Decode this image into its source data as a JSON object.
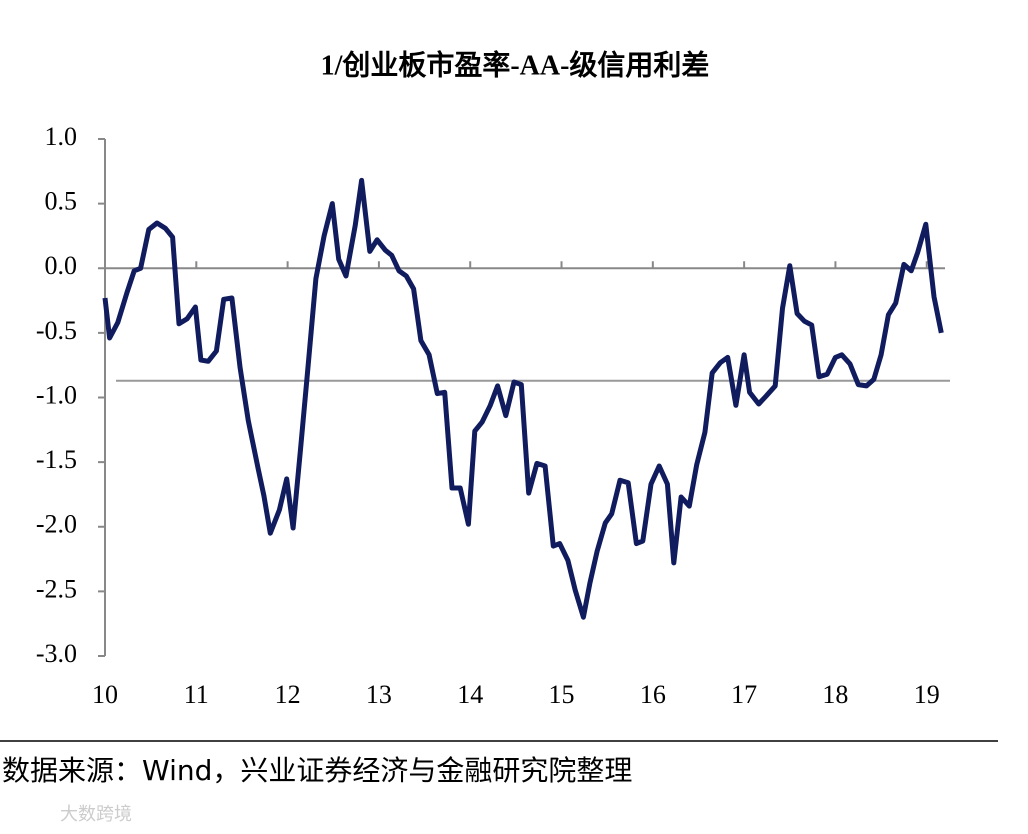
{
  "chart_data": {
    "type": "line",
    "title": "1/创业板市盈率-AA-级信用利差",
    "source": "数据来源：Wind，兴业证券经济与金融研究院整理",
    "watermark": "大数跨境",
    "series": [
      {
        "color": "#101c5e",
        "x": [
          10.0,
          10.05,
          10.14,
          10.24,
          10.32,
          10.39,
          10.48,
          10.57,
          10.66,
          10.74,
          10.81,
          10.9,
          10.99,
          11.05,
          11.13,
          11.22,
          11.3,
          11.39,
          11.48,
          11.57,
          11.68,
          11.74,
          11.81,
          11.91,
          11.99,
          12.06,
          12.14,
          12.22,
          12.31,
          12.4,
          12.49,
          12.56,
          12.64,
          12.74,
          12.81,
          12.9,
          12.98,
          13.07,
          13.14,
          13.22,
          13.3,
          13.38,
          13.46,
          13.55,
          13.64,
          13.72,
          13.8,
          13.89,
          13.98,
          14.05,
          14.13,
          14.22,
          14.3,
          14.39,
          14.48,
          14.56,
          14.64,
          14.73,
          14.82,
          14.91,
          14.98,
          15.07,
          15.15,
          15.24,
          15.31,
          15.39,
          15.48,
          15.55,
          15.64,
          15.73,
          15.82,
          15.89,
          15.98,
          16.07,
          16.16,
          16.23,
          16.31,
          16.4,
          16.48,
          16.57,
          16.65,
          16.74,
          16.82,
          16.91,
          17.0,
          17.06,
          17.16,
          17.24,
          17.34,
          17.42,
          17.5,
          17.58,
          17.66,
          17.74,
          17.82,
          17.91,
          18.0,
          18.07,
          18.16,
          18.25,
          18.34,
          18.42,
          18.5,
          18.58,
          18.66,
          18.75,
          18.83,
          18.9,
          18.99,
          19.08,
          19.16
        ],
        "values": [
          -0.23,
          -0.54,
          -0.42,
          -0.19,
          -0.02,
          0.0,
          0.3,
          0.35,
          0.31,
          0.24,
          -0.43,
          -0.39,
          -0.3,
          -0.71,
          -0.72,
          -0.64,
          -0.24,
          -0.23,
          -0.77,
          -1.18,
          -1.56,
          -1.76,
          -2.05,
          -1.87,
          -1.63,
          -2.01,
          -1.41,
          -0.79,
          -0.08,
          0.25,
          0.5,
          0.07,
          -0.06,
          0.33,
          0.68,
          0.13,
          0.22,
          0.14,
          0.1,
          -0.02,
          -0.06,
          -0.16,
          -0.56,
          -0.67,
          -0.97,
          -0.96,
          -1.7,
          -1.7,
          -1.98,
          -1.26,
          -1.19,
          -1.06,
          -0.91,
          -1.14,
          -0.88,
          -0.9,
          -1.74,
          -1.51,
          -1.53,
          -2.15,
          -2.13,
          -2.26,
          -2.49,
          -2.7,
          -2.44,
          -2.19,
          -1.97,
          -1.9,
          -1.64,
          -1.66,
          -2.13,
          -2.11,
          -1.67,
          -1.53,
          -1.67,
          -2.28,
          -1.77,
          -1.84,
          -1.52,
          -1.27,
          -0.81,
          -0.73,
          -0.69,
          -1.06,
          -0.67,
          -0.96,
          -1.05,
          -0.99,
          -0.91,
          -0.31,
          0.02,
          -0.35,
          -0.41,
          -0.44,
          -0.84,
          -0.82,
          -0.69,
          -0.67,
          -0.74,
          -0.9,
          -0.91,
          -0.86,
          -0.67,
          -0.36,
          -0.27,
          0.03,
          -0.02,
          0.12,
          0.34,
          -0.22,
          -0.5
        ]
      }
    ],
    "reference_line": -0.87,
    "xlim": [
      10,
      19.2
    ],
    "xticks": [
      10,
      11,
      12,
      13,
      14,
      15,
      16,
      17,
      18,
      19
    ],
    "ylim": [
      -3,
      1
    ],
    "yticks": [
      {
        "value": 1,
        "label": "1.0"
      },
      0.5,
      {
        "value": 0,
        "label": "0.0"
      },
      -0.5,
      {
        "value": -1,
        "label": "-1.0"
      },
      -1.5,
      {
        "value": -2,
        "label": "-2.0"
      },
      -2.5,
      {
        "value": -3,
        "label": "-3.0"
      }
    ]
  }
}
